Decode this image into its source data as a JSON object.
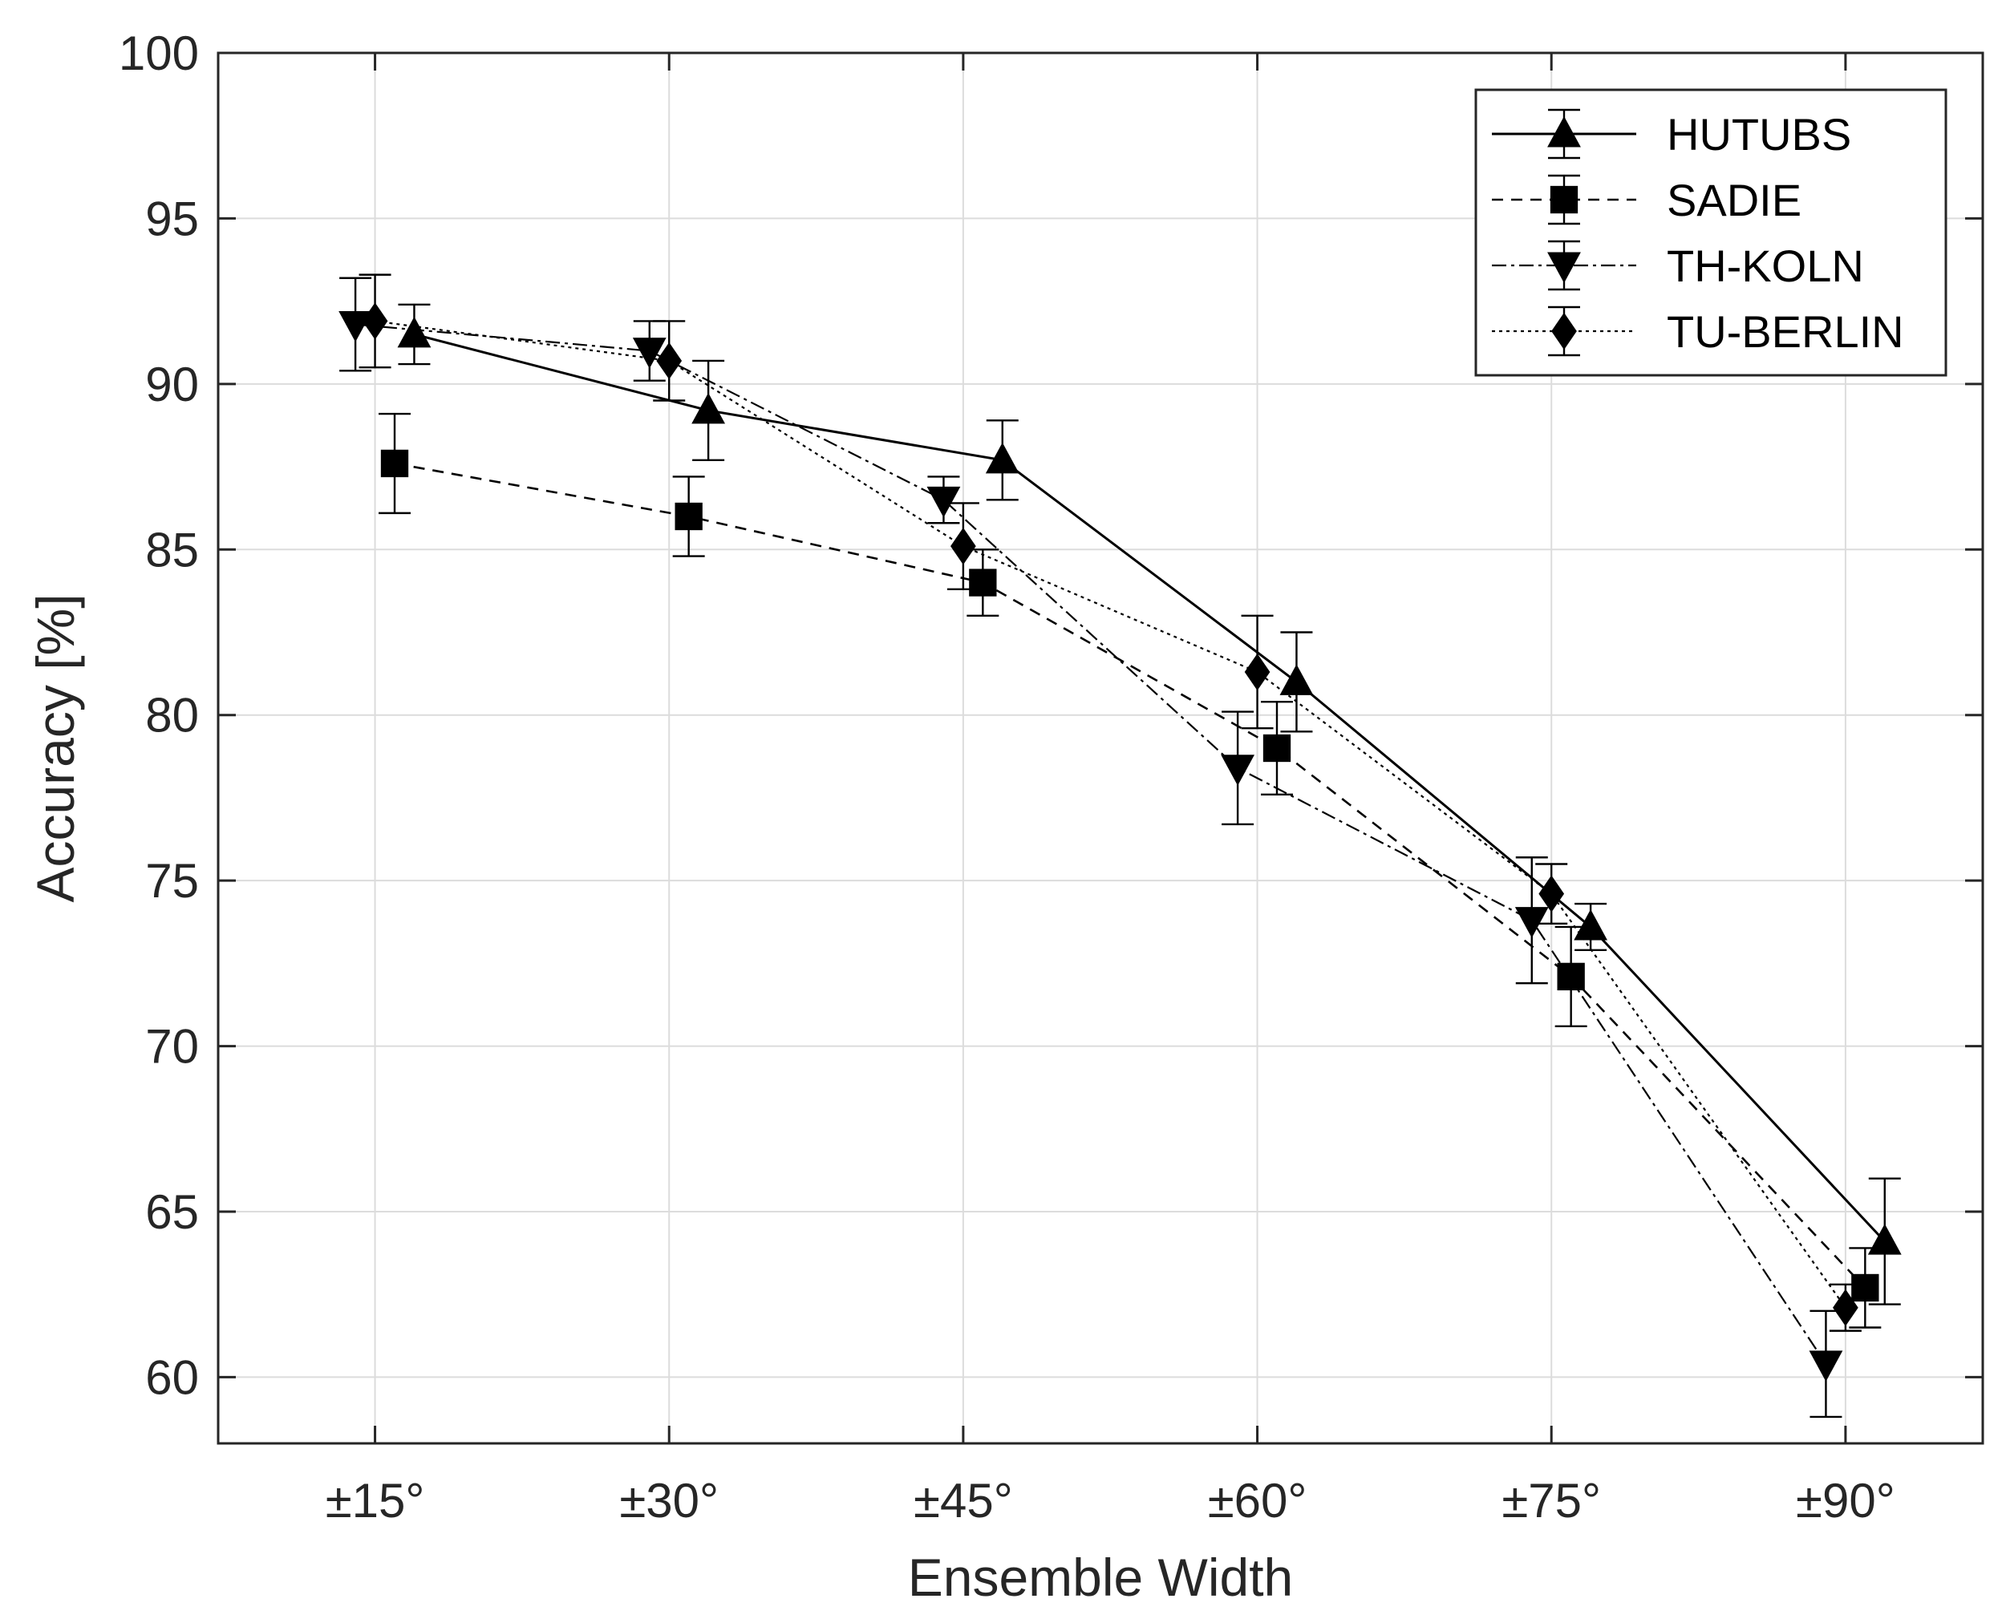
{
  "chart_data": {
    "type": "line",
    "title": "",
    "xlabel": "Ensemble Width",
    "ylabel": "Accuracy [%]",
    "categories": [
      "±15°",
      "±30°",
      "±45°",
      "±60°",
      "±75°",
      "±90°"
    ],
    "ylim": [
      58,
      100
    ],
    "yticks": [
      "60",
      "65",
      "70",
      "75",
      "80",
      "85",
      "90",
      "95",
      "100"
    ],
    "grid": true,
    "legend_position": "top-right",
    "series": [
      {
        "name": "HUTUBS",
        "marker": "triangle-up",
        "line_style": "solid",
        "x": [
          17,
          32,
          47,
          62,
          77,
          92
        ],
        "values": [
          91.5,
          89.2,
          87.7,
          81.0,
          73.6,
          64.1
        ],
        "error": [
          0.9,
          1.5,
          1.2,
          1.5,
          0.7,
          1.9
        ]
      },
      {
        "name": "SADIE",
        "marker": "square",
        "line_style": "dashed",
        "x": [
          16,
          31,
          46,
          61,
          76,
          91
        ],
        "values": [
          87.6,
          86.0,
          84.0,
          79.0,
          72.1,
          62.7
        ],
        "error": [
          1.5,
          1.2,
          1.0,
          1.4,
          1.5,
          1.2
        ]
      },
      {
        "name": "TH-KOLN",
        "marker": "triangle-down",
        "line_style": "dash-dot",
        "x": [
          14,
          29,
          44,
          59,
          74,
          89
        ],
        "values": [
          91.8,
          91.0,
          86.5,
          78.4,
          73.8,
          60.4
        ],
        "error": [
          1.4,
          0.9,
          0.7,
          1.7,
          1.9,
          1.6
        ]
      },
      {
        "name": "TU-BERLIN",
        "marker": "diamond",
        "line_style": "dotted",
        "x": [
          15,
          30,
          45,
          60,
          75,
          90
        ],
        "values": [
          91.9,
          90.7,
          85.1,
          81.3,
          74.6,
          62.1
        ],
        "error": [
          1.4,
          1.2,
          1.3,
          1.7,
          0.9,
          0.7
        ]
      }
    ]
  }
}
